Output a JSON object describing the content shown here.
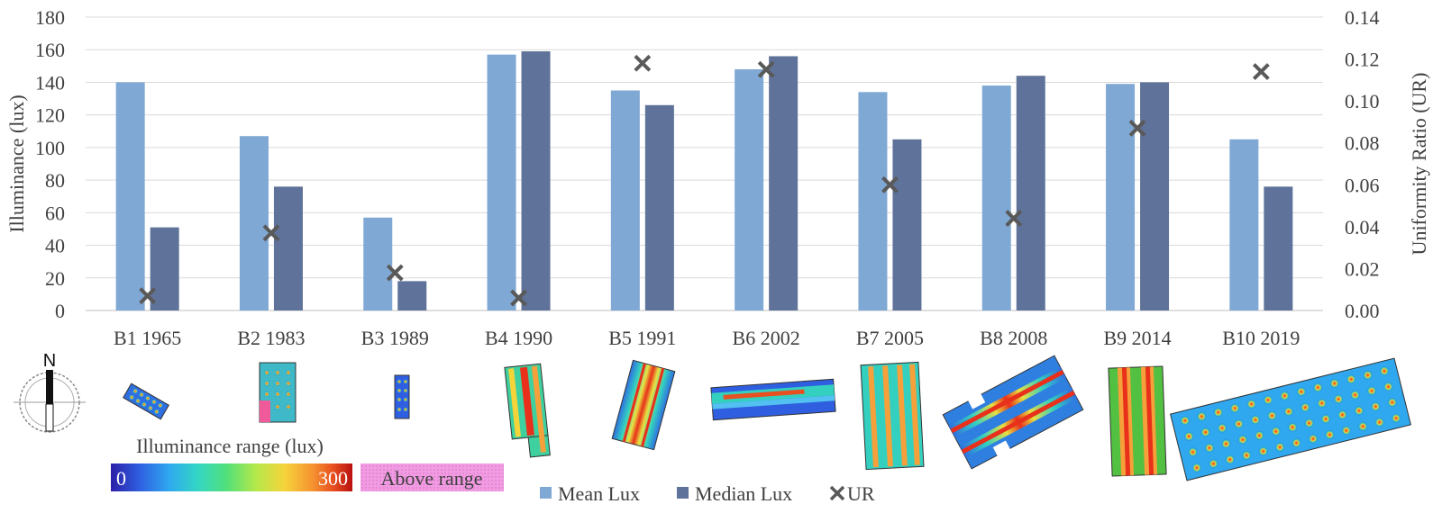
{
  "chart_data": {
    "type": "bar",
    "categories": [
      "B1 1965",
      "B2 1983",
      "B3 1989",
      "B4 1990",
      "B5 1991",
      "B6 2002",
      "B7 2005",
      "B8 2008",
      "B9 2014",
      "B10 2019"
    ],
    "series": [
      {
        "name": "Mean Lux",
        "kind": "bar",
        "axis": "left",
        "color": "#7FA8D4",
        "values": [
          140,
          107,
          57,
          157,
          135,
          148,
          134,
          138,
          139,
          105
        ]
      },
      {
        "name": "Median Lux",
        "kind": "bar",
        "axis": "left",
        "color": "#5F7299",
        "values": [
          51,
          76,
          18,
          159,
          126,
          156,
          105,
          144,
          140,
          76
        ]
      },
      {
        "name": "UR",
        "kind": "marker",
        "marker": "x",
        "axis": "right",
        "color": "#595959",
        "values": [
          0.007,
          0.037,
          0.018,
          0.006,
          0.118,
          0.115,
          0.06,
          0.044,
          0.087,
          0.114
        ]
      }
    ],
    "ylabel": "Illuminance (lux)",
    "y2label": "Uniformity Ratio (UR)",
    "ylim": [
      0,
      180
    ],
    "yticks": [
      "0",
      "20",
      "40",
      "60",
      "80",
      "100",
      "120",
      "140",
      "160",
      "180"
    ],
    "y2lim": [
      0,
      0.14
    ],
    "y2ticks": [
      "0.00",
      "0.02",
      "0.04",
      "0.06",
      "0.08",
      "0.10",
      "0.12",
      "0.14"
    ],
    "grid": true,
    "legend_position": "bottom"
  },
  "compass": {
    "label": "N"
  },
  "colorbar": {
    "title": "Illuminance range (lux)",
    "min_label": "0",
    "max_label": "300",
    "above_label": "Above range",
    "stops": [
      "#2b1fa8",
      "#2f5fe0",
      "#2fa8f0",
      "#33d6c4",
      "#52e07a",
      "#b4e84a",
      "#f5d43a",
      "#f59030",
      "#e8501f",
      "#b81010"
    ],
    "above_color": "#f29be3"
  },
  "floorplans": [
    "B1",
    "B2",
    "B3",
    "B4",
    "B5",
    "B6",
    "B7",
    "B8",
    "B9",
    "B10"
  ]
}
